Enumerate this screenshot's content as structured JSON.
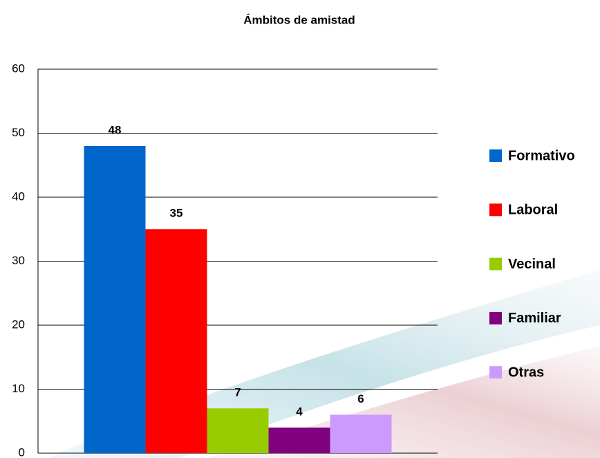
{
  "chart_data": {
    "type": "bar",
    "title": "Ámbitos de amistad",
    "categories": [
      null
    ],
    "series": [
      {
        "name": "Formativo",
        "color": "#0066cc",
        "values": [
          48
        ]
      },
      {
        "name": "Laboral",
        "color": "#ff0000",
        "values": [
          35
        ]
      },
      {
        "name": "Vecinal",
        "color": "#99cc00",
        "values": [
          7
        ]
      },
      {
        "name": "Familiar",
        "color": "#800080",
        "values": [
          4
        ]
      },
      {
        "name": "Otras",
        "color": "#cc99ff",
        "values": [
          6
        ]
      }
    ],
    "ylim": [
      0,
      60
    ],
    "yticks": [
      0,
      10,
      20,
      30,
      40,
      50,
      60
    ],
    "grid": true,
    "legend": "right"
  }
}
